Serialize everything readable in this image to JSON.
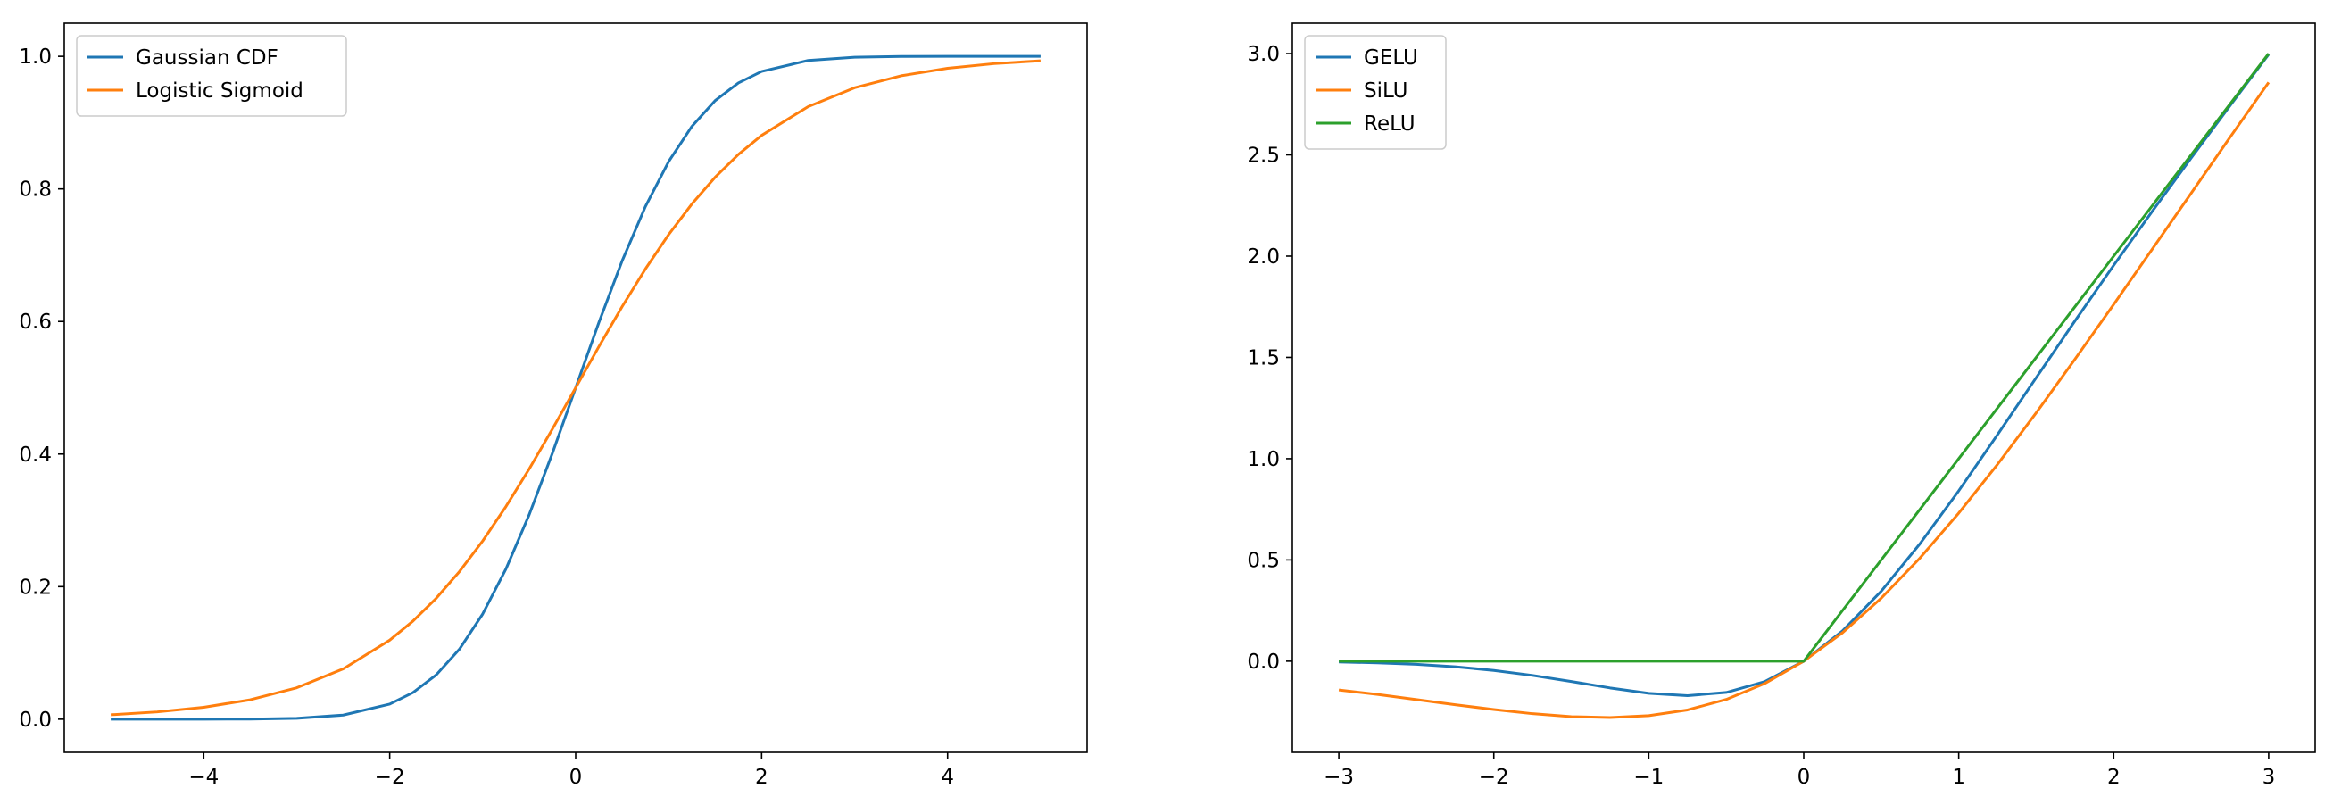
{
  "chart_data": [
    {
      "type": "line",
      "title": "",
      "xlabel": "",
      "ylabel": "",
      "xlim": [
        -5.5,
        5.5
      ],
      "ylim": [
        -0.05,
        1.05
      ],
      "xticks": [
        -4,
        -2,
        0,
        2,
        4
      ],
      "xtick_labels": [
        "−4",
        "−2",
        "0",
        "2",
        "4"
      ],
      "yticks": [
        0.0,
        0.2,
        0.4,
        0.6,
        0.8,
        1.0
      ],
      "ytick_labels": [
        "0.0",
        "0.2",
        "0.4",
        "0.6",
        "0.8",
        "1.0"
      ],
      "grid": false,
      "legend": "upper-left",
      "x": [
        -5.0,
        -4.5,
        -4.0,
        -3.5,
        -3.0,
        -2.5,
        -2.0,
        -1.75,
        -1.5,
        -1.25,
        -1.0,
        -0.75,
        -0.5,
        -0.25,
        0.0,
        0.25,
        0.5,
        0.75,
        1.0,
        1.25,
        1.5,
        1.75,
        2.0,
        2.5,
        3.0,
        3.5,
        4.0,
        4.5,
        5.0
      ],
      "series": [
        {
          "name": "Gaussian CDF",
          "color": "#1f77b4",
          "values": [
            0.0,
            0.0,
            0.0,
            0.0002,
            0.0013,
            0.0062,
            0.0228,
            0.0401,
            0.0668,
            0.1056,
            0.1587,
            0.2266,
            0.3085,
            0.4013,
            0.5,
            0.5987,
            0.6915,
            0.7734,
            0.8413,
            0.8944,
            0.9332,
            0.9599,
            0.9772,
            0.9938,
            0.9987,
            0.9998,
            1.0,
            1.0,
            1.0
          ]
        },
        {
          "name": "Logistic Sigmoid",
          "color": "#ff7f0e",
          "values": [
            0.0067,
            0.011,
            0.018,
            0.0293,
            0.0474,
            0.0759,
            0.1192,
            0.148,
            0.1824,
            0.2227,
            0.2689,
            0.3208,
            0.3775,
            0.4378,
            0.5,
            0.5622,
            0.6225,
            0.6792,
            0.7311,
            0.7773,
            0.8176,
            0.852,
            0.8808,
            0.9241,
            0.9526,
            0.9707,
            0.982,
            0.989,
            0.9933
          ]
        }
      ]
    },
    {
      "type": "line",
      "title": "",
      "xlabel": "",
      "ylabel": "",
      "xlim": [
        -3.3,
        3.3
      ],
      "ylim": [
        -0.45,
        3.15
      ],
      "xticks": [
        -3,
        -2,
        -1,
        0,
        1,
        2,
        3
      ],
      "xtick_labels": [
        "−3",
        "−2",
        "−1",
        "0",
        "1",
        "2",
        "3"
      ],
      "yticks": [
        0.0,
        0.5,
        1.0,
        1.5,
        2.0,
        2.5,
        3.0
      ],
      "ytick_labels": [
        "0.0",
        "0.5",
        "1.0",
        "1.5",
        "2.0",
        "2.5",
        "3.0"
      ],
      "grid": false,
      "legend": "upper-left",
      "x": [
        -3.0,
        -2.75,
        -2.5,
        -2.25,
        -2.0,
        -1.75,
        -1.5,
        -1.25,
        -1.0,
        -0.75,
        -0.5,
        -0.25,
        0.0,
        0.25,
        0.5,
        0.75,
        1.0,
        1.25,
        1.5,
        1.75,
        2.0,
        2.25,
        2.5,
        2.75,
        3.0
      ],
      "series": [
        {
          "name": "GELU",
          "color": "#1f77b4",
          "values": [
            -0.004,
            -0.0082,
            -0.0155,
            -0.0275,
            -0.0455,
            -0.0702,
            -0.1002,
            -0.132,
            -0.1587,
            -0.17,
            -0.1543,
            -0.1003,
            0.0,
            0.1497,
            0.3457,
            0.58,
            0.8413,
            1.118,
            1.3998,
            1.6798,
            1.9545,
            2.2225,
            2.4845,
            2.7418,
            2.996
          ]
        },
        {
          "name": "SiLU",
          "color": "#ff7f0e",
          "values": [
            -0.1423,
            -0.1641,
            -0.1896,
            -0.2149,
            -0.2384,
            -0.2591,
            -0.2736,
            -0.2784,
            -0.2689,
            -0.2406,
            -0.1888,
            -0.1095,
            0.0,
            0.1405,
            0.3112,
            0.5094,
            0.7311,
            0.9716,
            1.2264,
            1.4909,
            1.7616,
            2.0359,
            2.3104,
            2.5858,
            2.8577
          ]
        },
        {
          "name": "ReLU",
          "color": "#2ca02c",
          "values": [
            0.0,
            0.0,
            0.0,
            0.0,
            0.0,
            0.0,
            0.0,
            0.0,
            0.0,
            0.0,
            0.0,
            0.0,
            0.0,
            0.25,
            0.5,
            0.75,
            1.0,
            1.25,
            1.5,
            1.75,
            2.0,
            2.25,
            2.5,
            2.75,
            3.0
          ]
        }
      ]
    }
  ]
}
